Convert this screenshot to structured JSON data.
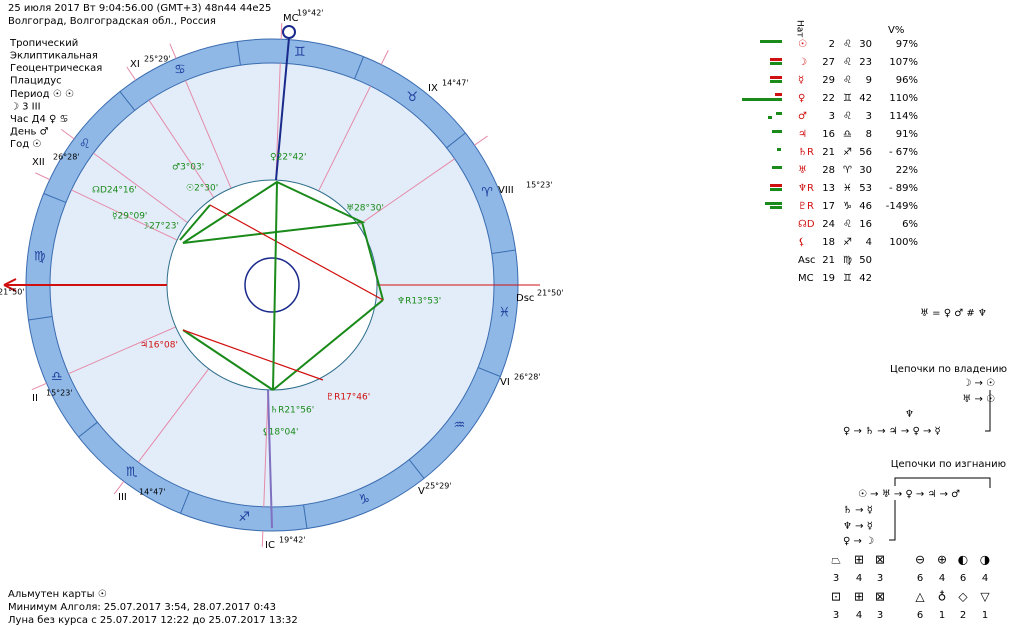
{
  "header": {
    "line1": "25 июля 2017  Вт   9:04:56.00 (GMT+3) 48n44  44e25",
    "line2": "Волгоград, Волгоградская обл., Россия"
  },
  "settings": [
    "Тропический",
    "Эклиптикальная",
    "Геоцентрическая",
    "Плацидус"
  ],
  "info": [
    "Период ☉ ☉",
    "☽  3 III",
    "Час Д4 ♀ ♋",
    "День ♂",
    "Год ☉"
  ],
  "signs": [
    "♈",
    "♉",
    "♊",
    "♋",
    "♌",
    "♍",
    "♎",
    "♏",
    "♐",
    "♑",
    "♒",
    "♓"
  ],
  "cusps": [
    {
      "name": "MC",
      "deg": "19°42'"
    },
    {
      "name": "IX",
      "deg": "14°47'"
    },
    {
      "name": "VIII",
      "deg": "15°23'"
    },
    {
      "name": "Dsc",
      "deg": "21°50'"
    },
    {
      "name": "VI",
      "deg": "26°28'"
    },
    {
      "name": "V",
      "deg": "25°29'"
    },
    {
      "name": "IC",
      "deg": "19°42'"
    },
    {
      "name": "III",
      "deg": "14°47'"
    },
    {
      "name": "II",
      "deg": "15°23'"
    },
    {
      "name": "XII",
      "deg": "26°28'"
    },
    {
      "name": "XI",
      "deg": "25°29'"
    },
    {
      "name": "",
      "deg": "21°50'"
    }
  ],
  "planet_labels": [
    "♀22°42'",
    "♂3°03'",
    "☉2°30'",
    "☊D24°16'",
    "☿29°09'",
    "☽27°23'",
    "♅28°30'",
    "♆R13°53'",
    "♇R17°46'",
    "♄R21°56'",
    "⚸18°04'",
    "♃16°08'"
  ],
  "table": {
    "header": [
      "Нат",
      "V%"
    ],
    "rows": [
      [
        "☉",
        "2",
        "♌",
        "30",
        "97%"
      ],
      [
        "☽",
        "27",
        "♌",
        "23",
        "107%"
      ],
      [
        "☿",
        "29",
        "♌",
        "9",
        "96%"
      ],
      [
        "♀",
        "22",
        "♊",
        "42",
        "110%"
      ],
      [
        "♂",
        "3",
        "♌",
        "3",
        "114%"
      ],
      [
        "♃",
        "16",
        "♎",
        "8",
        "91%"
      ],
      [
        "♄R",
        "21",
        "♐",
        "56",
        "- 67%"
      ],
      [
        "♅",
        "28",
        "♈",
        "30",
        "22%"
      ],
      [
        "♆R",
        "13",
        "♓",
        "53",
        "- 89%"
      ],
      [
        "♇R",
        "17",
        "♑",
        "46",
        "-149%"
      ],
      [
        "☊D",
        "24",
        "♌",
        "16",
        "6%"
      ],
      [
        "⚸",
        "18",
        "♐",
        "4",
        "100%"
      ],
      [
        "Asc",
        "21",
        "♍",
        "50",
        ""
      ],
      [
        "MC",
        "19",
        "♊",
        "42",
        ""
      ]
    ]
  },
  "formula": "♅ = ♀ ♂ # ♆",
  "chains_rule": {
    "title": "Цепочки по владению",
    "lines": [
      "☽ → ☉",
      "♅ → ☉",
      "♆",
      "♀ → ♄ → ♃ → ♀ → ☿"
    ]
  },
  "chains_exile": {
    "title": "Цепочки по изгнанию",
    "lines": [
      "☉ → ♅ → ♀ → ♃ → ♂",
      "♄ → ☿",
      "♆ → ☿",
      "♀ → ☽"
    ]
  },
  "footer": [
    "Альмутен карты ☉",
    "Минимум Алголя: 25.07.2017  3:54,  28.07.2017  0:43",
    "Луна без курса с 25.07.2017 12:22 до 25.07.2017 13:32"
  ],
  "stats": [
    {
      "symbols": [
        "⏢",
        "⊞",
        "⊠"
      ],
      "counts": [
        "3",
        "4",
        "3"
      ]
    },
    {
      "symbols": [
        "⊖",
        "⊕",
        "◐",
        "◑"
      ],
      "counts": [
        "6",
        "4",
        "6",
        "4"
      ]
    },
    {
      "symbols": [
        "⊡",
        "⊞",
        "⊠"
      ],
      "counts": [
        "3",
        "4",
        "3"
      ]
    },
    {
      "symbols": [
        "△",
        "♁",
        "◇",
        "▽"
      ],
      "counts": [
        "6",
        "1",
        "2",
        "1"
      ]
    }
  ]
}
